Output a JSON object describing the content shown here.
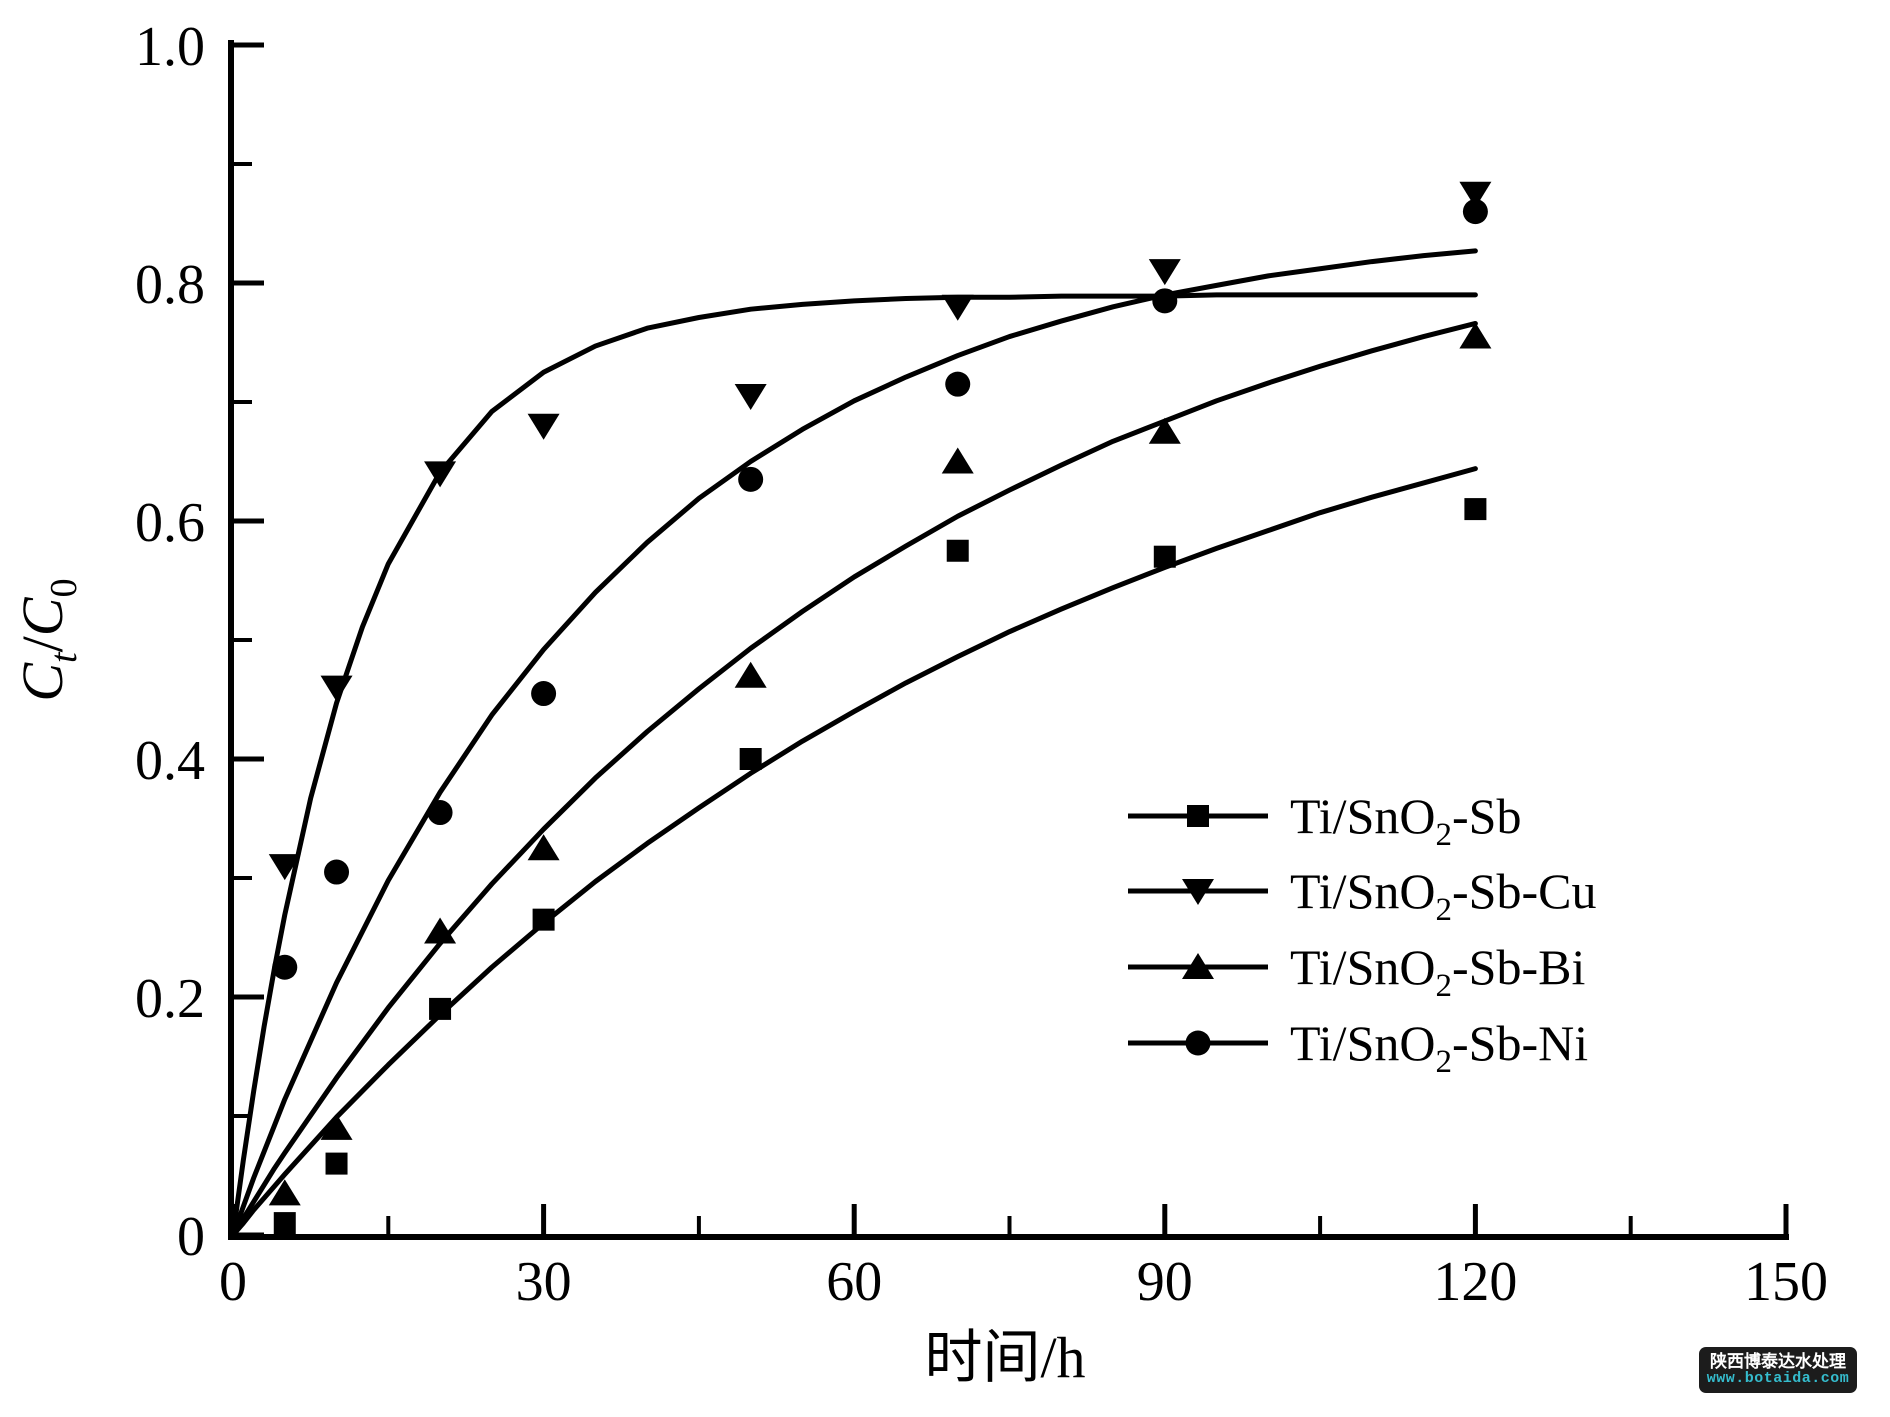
{
  "colors": {
    "foreground": "#000000",
    "background": "#ffffff",
    "watermark_bg": "#1c1c1c",
    "watermark_text": "#ffffff",
    "watermark_url": "#35bccd"
  },
  "watermark": {
    "company": "陕西博泰达水处理",
    "url": "www.botaida.com"
  },
  "chart_data": {
    "type": "line",
    "title": "",
    "xlabel": "时间/h",
    "ylabel": "Ct/C0",
    "xlim": [
      0,
      150
    ],
    "ylim": [
      0,
      1.0
    ],
    "grid": false,
    "legend_position": "lower right",
    "x_axis": {
      "label_segments": [
        {
          "t": "时间/h"
        }
      ],
      "major_ticks": [
        0,
        30,
        60,
        90,
        120,
        150
      ],
      "tick_labels": [
        "0",
        "30",
        "60",
        "90",
        "120",
        "150"
      ],
      "minor_ticks": [
        15,
        45,
        75,
        105,
        135
      ]
    },
    "y_axis": {
      "label_segments": [
        {
          "t": "C",
          "italic": true
        },
        {
          "t": "t",
          "italic": true,
          "sub": true
        },
        {
          "t": "/"
        },
        {
          "t": "C",
          "italic": true
        },
        {
          "t": "0",
          "sub": true
        }
      ],
      "major_ticks": [
        0,
        0.2,
        0.4,
        0.6,
        0.8,
        1.0
      ],
      "tick_labels": [
        "0",
        "0.2",
        "0.4",
        "0.6",
        "0.8",
        "1.0"
      ],
      "minor_ticks": [
        0.1,
        0.3,
        0.5,
        0.7,
        0.9
      ]
    },
    "series": [
      {
        "name": "Ti/SnO2-Sb",
        "label_segments": [
          {
            "t": "Ti/SnO"
          },
          {
            "t": "2",
            "sub": true
          },
          {
            "t": "-Sb"
          }
        ],
        "marker": "square",
        "points": [
          [
            5,
            0.01
          ],
          [
            10,
            0.06
          ],
          [
            20,
            0.19
          ],
          [
            30,
            0.265
          ],
          [
            50,
            0.4
          ],
          [
            70,
            0.575
          ],
          [
            90,
            0.57
          ],
          [
            120,
            0.61
          ]
        ],
        "curve": [
          [
            0,
            0
          ],
          [
            1,
            0.01
          ],
          [
            2,
            0.021
          ],
          [
            3,
            0.031
          ],
          [
            4,
            0.041
          ],
          [
            5,
            0.051
          ],
          [
            10,
            0.099
          ],
          [
            15,
            0.143
          ],
          [
            20,
            0.185
          ],
          [
            25,
            0.225
          ],
          [
            30,
            0.262
          ],
          [
            35,
            0.297
          ],
          [
            40,
            0.329
          ],
          [
            45,
            0.359
          ],
          [
            50,
            0.388
          ],
          [
            55,
            0.415
          ],
          [
            60,
            0.44
          ],
          [
            65,
            0.464
          ],
          [
            70,
            0.486
          ],
          [
            75,
            0.507
          ],
          [
            80,
            0.526
          ],
          [
            85,
            0.544
          ],
          [
            90,
            0.561
          ],
          [
            95,
            0.577
          ],
          [
            100,
            0.592
          ],
          [
            105,
            0.607
          ],
          [
            110,
            0.62
          ],
          [
            115,
            0.632
          ],
          [
            120,
            0.644
          ]
        ]
      },
      {
        "name": "Ti/SnO2-Sb-Cu",
        "label_segments": [
          {
            "t": "Ti/SnO"
          },
          {
            "t": "2",
            "sub": true
          },
          {
            "t": "-Sb-Cu"
          }
        ],
        "marker": "triangle-down",
        "points": [
          [
            5,
            0.31
          ],
          [
            10,
            0.46
          ],
          [
            20,
            0.64
          ],
          [
            30,
            0.68
          ],
          [
            50,
            0.705
          ],
          [
            70,
            0.78
          ],
          [
            90,
            0.81
          ],
          [
            120,
            0.875
          ]
        ],
        "curve": [
          [
            0,
            0
          ],
          [
            1,
            0.063
          ],
          [
            2,
            0.121
          ],
          [
            3,
            0.175
          ],
          [
            4,
            0.224
          ],
          [
            5,
            0.269
          ],
          [
            7.5,
            0.367
          ],
          [
            10,
            0.447
          ],
          [
            12.5,
            0.511
          ],
          [
            15,
            0.564
          ],
          [
            20,
            0.641
          ],
          [
            25,
            0.692
          ],
          [
            30,
            0.725
          ],
          [
            35,
            0.747
          ],
          [
            40,
            0.762
          ],
          [
            45,
            0.771
          ],
          [
            50,
            0.778
          ],
          [
            55,
            0.782
          ],
          [
            60,
            0.785
          ],
          [
            65,
            0.787
          ],
          [
            70,
            0.788
          ],
          [
            75,
            0.788
          ],
          [
            80,
            0.789
          ],
          [
            85,
            0.789
          ],
          [
            90,
            0.789
          ],
          [
            95,
            0.79
          ],
          [
            100,
            0.79
          ],
          [
            105,
            0.79
          ],
          [
            110,
            0.79
          ],
          [
            115,
            0.79
          ],
          [
            120,
            0.79
          ]
        ]
      },
      {
        "name": "Ti/SnO2-Sb-Bi",
        "label_segments": [
          {
            "t": "Ti/SnO"
          },
          {
            "t": "2",
            "sub": true
          },
          {
            "t": "-Sb-Bi"
          }
        ],
        "marker": "triangle-up",
        "points": [
          [
            5,
            0.035
          ],
          [
            10,
            0.09
          ],
          [
            20,
            0.255
          ],
          [
            30,
            0.325
          ],
          [
            50,
            0.47
          ],
          [
            70,
            0.65
          ],
          [
            90,
            0.675
          ],
          [
            120,
            0.755
          ]
        ],
        "curve": [
          [
            0,
            0
          ],
          [
            1,
            0.014
          ],
          [
            2,
            0.028
          ],
          [
            3,
            0.042
          ],
          [
            4,
            0.056
          ],
          [
            5,
            0.069
          ],
          [
            10,
            0.132
          ],
          [
            15,
            0.191
          ],
          [
            20,
            0.245
          ],
          [
            25,
            0.295
          ],
          [
            30,
            0.341
          ],
          [
            35,
            0.384
          ],
          [
            40,
            0.423
          ],
          [
            45,
            0.459
          ],
          [
            50,
            0.493
          ],
          [
            55,
            0.524
          ],
          [
            60,
            0.553
          ],
          [
            65,
            0.579
          ],
          [
            70,
            0.604
          ],
          [
            75,
            0.626
          ],
          [
            80,
            0.647
          ],
          [
            85,
            0.667
          ],
          [
            90,
            0.684
          ],
          [
            95,
            0.701
          ],
          [
            100,
            0.716
          ],
          [
            105,
            0.73
          ],
          [
            110,
            0.743
          ],
          [
            115,
            0.755
          ],
          [
            120,
            0.766
          ]
        ]
      },
      {
        "name": "Ti/SnO2-Sb-Ni",
        "label_segments": [
          {
            "t": "Ti/SnO"
          },
          {
            "t": "2",
            "sub": true
          },
          {
            "t": "-Sb-Ni"
          }
        ],
        "marker": "circle",
        "points": [
          [
            5,
            0.225
          ],
          [
            10,
            0.305
          ],
          [
            20,
            0.355
          ],
          [
            30,
            0.455
          ],
          [
            50,
            0.635
          ],
          [
            70,
            0.715
          ],
          [
            90,
            0.785
          ],
          [
            120,
            0.86
          ]
        ],
        "curve": [
          [
            0,
            0
          ],
          [
            1,
            0.024
          ],
          [
            2,
            0.048
          ],
          [
            3,
            0.07
          ],
          [
            4,
            0.092
          ],
          [
            5,
            0.114
          ],
          [
            10,
            0.212
          ],
          [
            15,
            0.298
          ],
          [
            20,
            0.372
          ],
          [
            25,
            0.437
          ],
          [
            30,
            0.492
          ],
          [
            35,
            0.54
          ],
          [
            40,
            0.582
          ],
          [
            45,
            0.619
          ],
          [
            50,
            0.65
          ],
          [
            55,
            0.677
          ],
          [
            60,
            0.701
          ],
          [
            65,
            0.721
          ],
          [
            70,
            0.739
          ],
          [
            75,
            0.755
          ],
          [
            80,
            0.768
          ],
          [
            85,
            0.78
          ],
          [
            90,
            0.79
          ],
          [
            95,
            0.798
          ],
          [
            100,
            0.806
          ],
          [
            105,
            0.812
          ],
          [
            110,
            0.818
          ],
          [
            115,
            0.823
          ],
          [
            120,
            0.827
          ]
        ]
      }
    ]
  }
}
